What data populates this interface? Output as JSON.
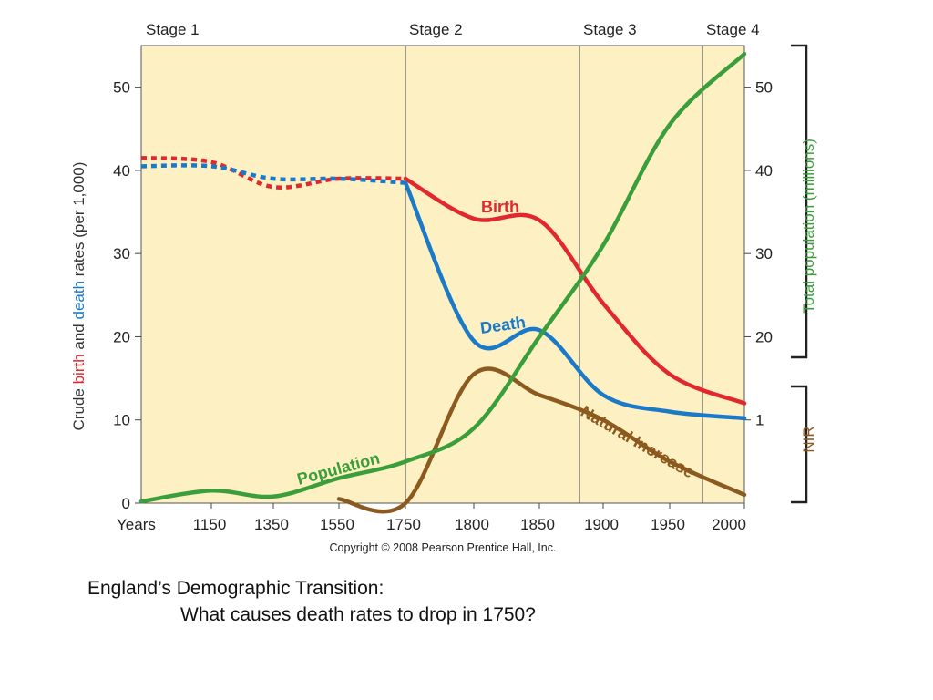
{
  "chart_data": {
    "type": "line",
    "stages": [
      {
        "label": "Stage 1",
        "x_start": "Years",
        "x_end": "1750"
      },
      {
        "label": "Stage 2",
        "x_start": "1750",
        "x_end": "1880"
      },
      {
        "label": "Stage 3",
        "x_start": "1880",
        "x_end": "1970"
      },
      {
        "label": "Stage 4",
        "x_start": "1970",
        "x_end": "2000"
      }
    ],
    "x_tick_labels": [
      "Years",
      "1150",
      "1350",
      "1550",
      "1750",
      "1800",
      "1850",
      "1900",
      "1950",
      "2000"
    ],
    "y_left": {
      "label_parts": [
        {
          "text": "Crude ",
          "color": "#333333"
        },
        {
          "text": "birth",
          "color": "#e0282e"
        },
        {
          "text": " and ",
          "color": "#333333"
        },
        {
          "text": "death",
          "color": "#1a7ac8"
        },
        {
          "text": " rates (per 1,000)",
          "color": "#333333"
        }
      ],
      "range": [
        0,
        55
      ],
      "ticks": [
        "0",
        "10",
        "20",
        "30",
        "40",
        "50"
      ]
    },
    "y_right_population": {
      "label": "Total population (millions)",
      "color": "#3a9e3a",
      "range": [
        0,
        55
      ],
      "ticks": [
        "20",
        "30",
        "40",
        "50"
      ]
    },
    "y_right_nir": {
      "label": "NIR",
      "color": "#8c5a1e",
      "ticks": [
        "1"
      ]
    },
    "series": [
      {
        "name": "Birth",
        "color": "#e0282e",
        "points": [
          [
            "Years",
            41.5
          ],
          [
            "1150",
            41
          ],
          [
            "1350",
            38
          ],
          [
            "1550",
            39
          ],
          [
            "1750",
            39
          ],
          [
            "1800",
            34.2
          ],
          [
            "1850",
            34
          ],
          [
            "1900",
            24
          ],
          [
            "1950",
            15.5
          ],
          [
            "2000",
            12
          ]
        ]
      },
      {
        "name": "Death",
        "color": "#1a7ac8",
        "points": [
          [
            "Years",
            40.5
          ],
          [
            "1150",
            40.5
          ],
          [
            "1350",
            39
          ],
          [
            "1550",
            39
          ],
          [
            "1750",
            38.5
          ],
          [
            "1800",
            19.5
          ],
          [
            "1850",
            20.8
          ],
          [
            "1900",
            13
          ],
          [
            "1950",
            11
          ],
          [
            "2000",
            10.2
          ]
        ]
      },
      {
        "name": "Natural Increase",
        "color": "#8c5a1e",
        "points": [
          [
            "1550",
            0.5
          ],
          [
            "1750",
            0
          ],
          [
            "1800",
            15.5
          ],
          [
            "1850",
            13
          ],
          [
            "1900",
            10
          ],
          [
            "1950",
            5
          ],
          [
            "2000",
            1
          ]
        ]
      },
      {
        "name": "Population",
        "color": "#3a9e3a",
        "points": [
          [
            "Years",
            0.2
          ],
          [
            "1150",
            1.5
          ],
          [
            "1350",
            0.8
          ],
          [
            "1550",
            3
          ],
          [
            "1750",
            5
          ],
          [
            "1800",
            9
          ],
          [
            "1850",
            20
          ],
          [
            "1900",
            31
          ],
          [
            "1950",
            45.5
          ],
          [
            "2000",
            54
          ]
        ]
      }
    ],
    "note_stage1": "Birth and death rates in Stage 1 drawn as dotted lines.",
    "copyright": "Copyright © 2008 Pearson Prentice Hall, Inc."
  },
  "caption": {
    "line1": "England’s Demographic Transition:",
    "line2": "What causes death rates to drop in 1750?"
  }
}
